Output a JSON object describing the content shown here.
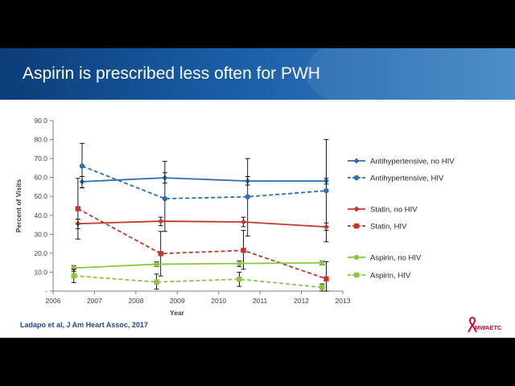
{
  "slide": {
    "title": "Aspirin is prescribed less often for PWH",
    "citation": "Ladapo et al, J Am Heart Assoc, 2017",
    "logo_text": "MWAETC"
  },
  "chart_data": {
    "type": "line",
    "xlabel": "Year",
    "ylabel": "Percent of Visits",
    "xlim": [
      2006,
      2013
    ],
    "ylim": [
      0,
      90
    ],
    "x_ticks": [
      "2006",
      "2007",
      "2008",
      "2009",
      "2010",
      "2011",
      "2012",
      "2013"
    ],
    "y_ticks": [
      "-",
      "10.0",
      "20.0",
      "30.0",
      "40.0",
      "50.0",
      "60.0",
      "70.0",
      "80.0",
      "90.0"
    ],
    "grid": false,
    "legend_position": "right",
    "series": [
      {
        "name": "Antihypertensive,  no HIV",
        "color": "#2e6db0",
        "dashed": false,
        "marker": "diamond",
        "x": [
          2006.7,
          2008.7,
          2010.7,
          2012.6
        ],
        "y": [
          57.8,
          59.8,
          58.1,
          58.1
        ],
        "err_low": [
          54.5,
          57.0,
          56.0,
          56.5
        ],
        "err_high": [
          60.5,
          62.5,
          60.5,
          59.5
        ]
      },
      {
        "name": "Antihypertensive,  HIV",
        "color": "#2e6db0",
        "dashed": true,
        "marker": "circle",
        "x": [
          2006.7,
          2008.7,
          2010.7,
          2012.6
        ],
        "y": [
          66.0,
          48.8,
          49.8,
          53.0
        ],
        "err_low": [
          54.5,
          31.5,
          29.0,
          26.0
        ],
        "err_high": [
          78.0,
          68.5,
          70.0,
          80.0
        ]
      },
      {
        "name": "Statin, no HIV",
        "color": "#c0392b",
        "dashed": false,
        "marker": "diamond",
        "x": [
          2006.6,
          2008.6,
          2010.6,
          2012.6
        ],
        "y": [
          35.6,
          36.9,
          36.5,
          33.9
        ],
        "err_low": [
          33.0,
          34.5,
          34.0,
          32.0
        ],
        "err_high": [
          38.0,
          39.0,
          39.0,
          36.0
        ]
      },
      {
        "name": "Statin, HIV",
        "color": "#c0392b",
        "dashed": true,
        "marker": "square",
        "x": [
          2006.6,
          2008.6,
          2010.6,
          2012.6
        ],
        "y": [
          43.5,
          19.8,
          21.5,
          6.5
        ],
        "err_low": [
          27.5,
          8.0,
          11.5,
          0.0
        ],
        "err_high": [
          59.5,
          31.5,
          32.0,
          15.5
        ]
      },
      {
        "name": "Aspirin, no HIV",
        "color": "#8cc63f",
        "dashed": false,
        "marker": "circle",
        "x": [
          2006.5,
          2008.5,
          2010.5,
          2012.5
        ],
        "y": [
          12.2,
          14.2,
          14.6,
          14.9
        ],
        "err_low": [
          10.5,
          13.0,
          13.0,
          13.8
        ],
        "err_high": [
          13.5,
          15.5,
          16.0,
          16.0
        ]
      },
      {
        "name": "Aspirin, HIV",
        "color": "#8cc63f",
        "dashed": true,
        "marker": "square",
        "x": [
          2006.5,
          2008.5,
          2010.5,
          2012.5
        ],
        "y": [
          8.1,
          4.8,
          6.3,
          2.0
        ],
        "err_low": [
          4.5,
          1.0,
          2.5,
          0.0
        ],
        "err_high": [
          11.5,
          9.0,
          10.0,
          3.8
        ]
      }
    ]
  }
}
